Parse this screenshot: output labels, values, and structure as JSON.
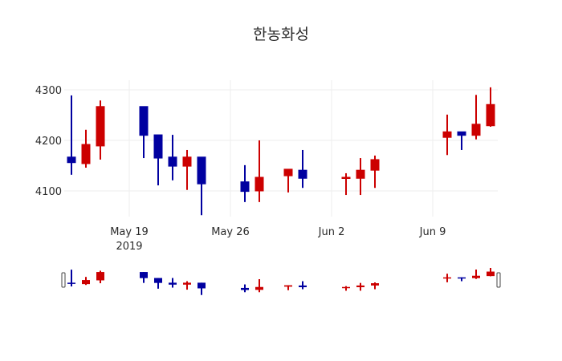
{
  "title": "한농화성",
  "colors": {
    "increasing": "#cc0000",
    "decreasing": "#0000a0",
    "grid": "#eeeeee"
  },
  "chart_data": {
    "type": "candlestick",
    "title": "한농화성",
    "xlabel": "",
    "ylabel": "",
    "y_ticks": [
      4100,
      4200,
      4300
    ],
    "x_ticks": [
      {
        "date": "2019-05-19",
        "label": "May 19",
        "sublabel": "2019"
      },
      {
        "date": "2019-05-26",
        "label": "May 26"
      },
      {
        "date": "2019-06-02",
        "label": "Jun 2"
      },
      {
        "date": "2019-06-09",
        "label": "Jun 9"
      }
    ],
    "ylim": [
      4050,
      4320
    ],
    "xlim": [
      "2019-05-15",
      "2019-06-13"
    ],
    "grid": true,
    "rangeslider": true,
    "series": [
      {
        "date": "2019-05-15",
        "open": 4167,
        "high": 4289,
        "low": 4132,
        "close": 4156
      },
      {
        "date": "2019-05-16",
        "open": 4154,
        "high": 4221,
        "low": 4146,
        "close": 4192
      },
      {
        "date": "2019-05-17",
        "open": 4189,
        "high": 4279,
        "low": 4162,
        "close": 4267
      },
      {
        "date": "2019-05-20",
        "open": 4267,
        "high": 4267,
        "low": 4165,
        "close": 4210
      },
      {
        "date": "2019-05-21",
        "open": 4211,
        "high": 4211,
        "low": 4111,
        "close": 4165
      },
      {
        "date": "2019-05-22",
        "open": 4167,
        "high": 4211,
        "low": 4121,
        "close": 4149
      },
      {
        "date": "2019-05-23",
        "open": 4149,
        "high": 4181,
        "low": 4102,
        "close": 4167
      },
      {
        "date": "2019-05-24",
        "open": 4167,
        "high": 4167,
        "low": 4052,
        "close": 4114
      },
      {
        "date": "2019-05-27",
        "open": 4118,
        "high": 4151,
        "low": 4078,
        "close": 4099
      },
      {
        "date": "2019-05-28",
        "open": 4100,
        "high": 4200,
        "low": 4078,
        "close": 4127
      },
      {
        "date": "2019-05-30",
        "open": 4130,
        "high": 4143,
        "low": 4097,
        "close": 4143
      },
      {
        "date": "2019-05-31",
        "open": 4141,
        "high": 4181,
        "low": 4106,
        "close": 4125
      },
      {
        "date": "2019-06-03",
        "open": 4127,
        "high": 4135,
        "low": 4092,
        "close": 4127
      },
      {
        "date": "2019-06-04",
        "open": 4125,
        "high": 4165,
        "low": 4092,
        "close": 4141
      },
      {
        "date": "2019-06-05",
        "open": 4141,
        "high": 4170,
        "low": 4106,
        "close": 4162
      },
      {
        "date": "2019-06-10",
        "open": 4206,
        "high": 4251,
        "low": 4171,
        "close": 4217
      },
      {
        "date": "2019-06-11",
        "open": 4217,
        "high": 4217,
        "low": 4181,
        "close": 4210
      },
      {
        "date": "2019-06-12",
        "open": 4210,
        "high": 4290,
        "low": 4202,
        "close": 4232
      },
      {
        "date": "2019-06-13",
        "open": 4229,
        "high": 4305,
        "low": 4227,
        "close": 4271
      }
    ]
  }
}
